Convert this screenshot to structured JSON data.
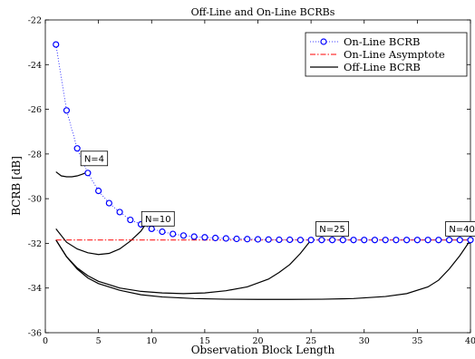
{
  "chart_data": {
    "type": "line",
    "title": "Off-Line and On-Line BCRBs",
    "xlabel": "Observation Block Length",
    "ylabel": "BCRB [dB]",
    "xlim": [
      0,
      40
    ],
    "ylim": [
      -36,
      -22
    ],
    "xticks": [
      0,
      5,
      10,
      15,
      20,
      25,
      30,
      35,
      40
    ],
    "yticks": [
      -36,
      -34,
      -32,
      -30,
      -28,
      -26,
      -24,
      -22
    ],
    "xtick_labels": [
      "0",
      "5",
      "10",
      "15",
      "20",
      "25",
      "30",
      "35",
      "40"
    ],
    "ytick_labels": [
      "-36",
      "-34",
      "-32",
      "-30",
      "-28",
      "-26",
      "-24",
      "-22"
    ],
    "grid": false,
    "legend_position": "top-right",
    "legend": [
      {
        "label": "On-Line BCRB",
        "style": "dotted-circle",
        "color": "#0000ff"
      },
      {
        "label": "On-Line Asymptote",
        "style": "dashdot",
        "color": "#ff0000"
      },
      {
        "label": "Off-Line BCRB",
        "style": "solid",
        "color": "#000000"
      }
    ],
    "series": [
      {
        "name": "On-Line BCRB",
        "color": "#0000ff",
        "x": [
          1,
          2,
          3,
          4,
          5,
          6,
          7,
          8,
          9,
          10,
          11,
          12,
          13,
          14,
          15,
          16,
          17,
          18,
          19,
          20,
          21,
          22,
          23,
          24,
          25,
          26,
          27,
          28,
          29,
          30,
          31,
          32,
          33,
          34,
          35,
          36,
          37,
          38,
          39,
          40
        ],
        "y": [
          -23.1,
          -26.05,
          -27.75,
          -28.85,
          -29.65,
          -30.2,
          -30.6,
          -30.95,
          -31.15,
          -31.35,
          -31.48,
          -31.58,
          -31.65,
          -31.7,
          -31.73,
          -31.76,
          -31.78,
          -31.8,
          -31.81,
          -31.82,
          -31.83,
          -31.84,
          -31.84,
          -31.85,
          -31.85,
          -31.85,
          -31.85,
          -31.85,
          -31.85,
          -31.85,
          -31.85,
          -31.85,
          -31.85,
          -31.85,
          -31.85,
          -31.85,
          -31.85,
          -31.85,
          -31.85,
          -31.85
        ]
      },
      {
        "name": "On-Line Asymptote",
        "color": "#ff0000",
        "x": [
          1,
          40
        ],
        "y": [
          -31.85,
          -31.85
        ]
      },
      {
        "name": "Off-Line BCRB",
        "color": "#000000",
        "segments": [
          {
            "x": [
              1,
              1.5,
              2,
              2.5,
              3,
              3.5,
              4
            ],
            "y": [
              -28.8,
              -28.98,
              -29.02,
              -29.02,
              -28.98,
              -28.9,
              -28.8
            ]
          },
          {
            "x": [
              1,
              2,
              3,
              4,
              5,
              6,
              7,
              8,
              9,
              10
            ],
            "y": [
              -31.35,
              -31.95,
              -32.25,
              -32.42,
              -32.5,
              -32.45,
              -32.25,
              -31.9,
              -31.45,
              -30.75
            ]
          },
          {
            "x": [
              1,
              2,
              3,
              4,
              5,
              7,
              9,
              11,
              13,
              15,
              17,
              19,
              21,
              22,
              23,
              24,
              25
            ],
            "y": [
              -31.85,
              -32.6,
              -33.1,
              -33.45,
              -33.7,
              -34.0,
              -34.15,
              -34.22,
              -34.25,
              -34.22,
              -34.12,
              -33.95,
              -33.6,
              -33.3,
              -32.95,
              -32.45,
              -31.85
            ]
          },
          {
            "x": [
              1,
              2,
              3,
              4,
              5,
              7,
              9,
              11,
              14,
              17,
              20,
              23,
              26,
              29,
              32,
              34,
              36,
              37,
              38,
              39,
              40
            ],
            "y": [
              -31.85,
              -32.6,
              -33.15,
              -33.55,
              -33.8,
              -34.1,
              -34.3,
              -34.4,
              -34.47,
              -34.5,
              -34.51,
              -34.51,
              -34.5,
              -34.47,
              -34.38,
              -34.25,
              -33.95,
              -33.65,
              -33.15,
              -32.55,
              -31.85
            ]
          }
        ]
      }
    ],
    "annotations": [
      {
        "text": "N=4",
        "x": 4.6,
        "y": -28.2
      },
      {
        "text": "N=10",
        "x": 10.6,
        "y": -30.9
      },
      {
        "text": "N=25",
        "x": 27.0,
        "y": -31.35
      },
      {
        "text": "N=40",
        "x": 39.2,
        "y": -31.35
      }
    ]
  }
}
